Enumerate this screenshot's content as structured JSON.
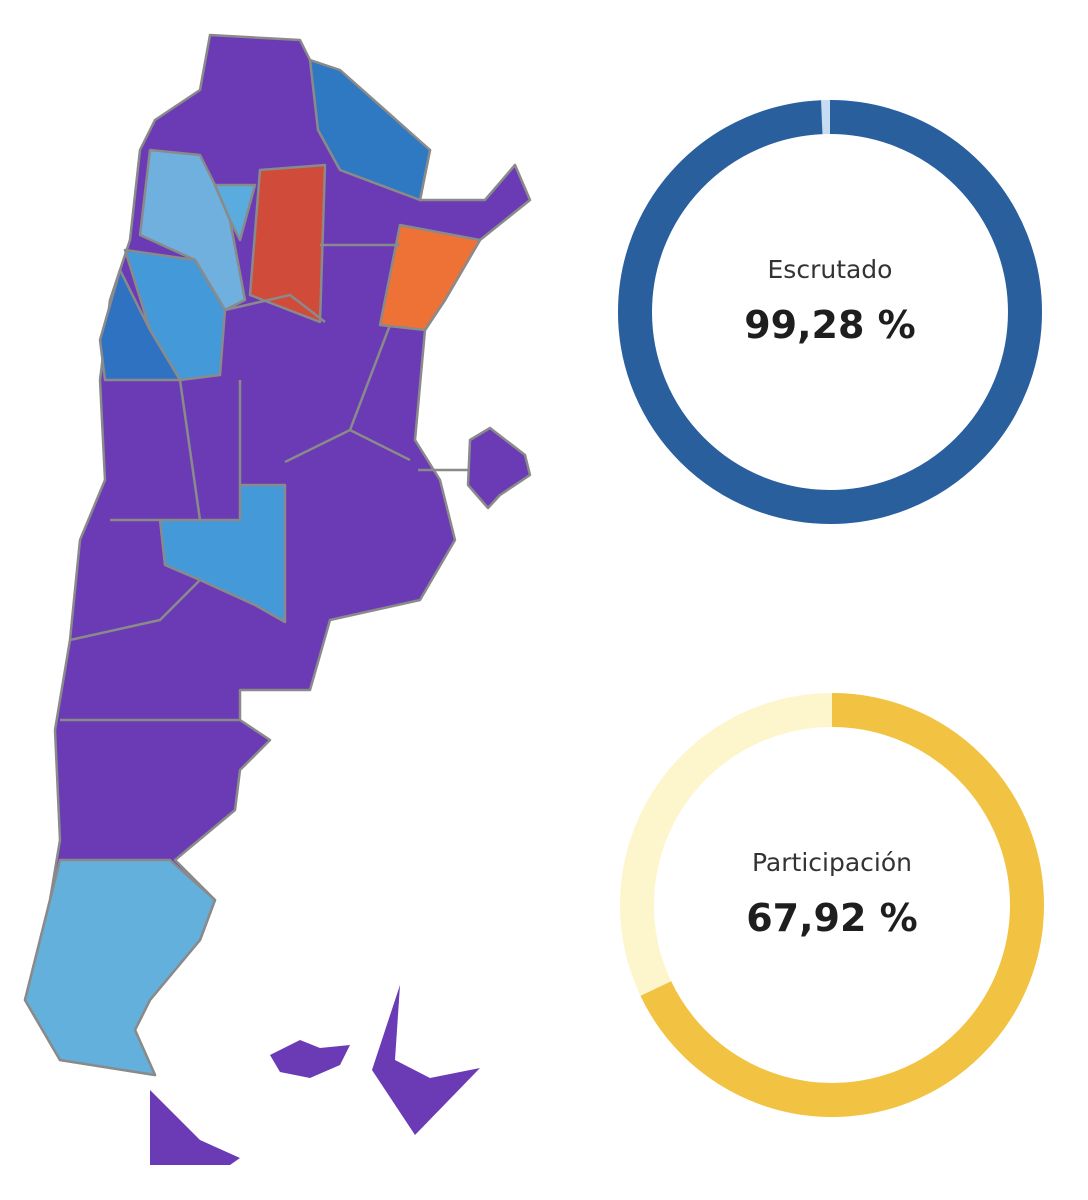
{
  "gauges": [
    {
      "label": "Escrutado",
      "value": 99.28,
      "value_label": "99,28 %",
      "color": "#2a5f9e",
      "track_color": "#c6dcf0"
    },
    {
      "label": "Participación",
      "value": 67.92,
      "value_label": "67,92 %",
      "color": "#f2c242",
      "track_color": "#fdf6cc"
    }
  ]
}
